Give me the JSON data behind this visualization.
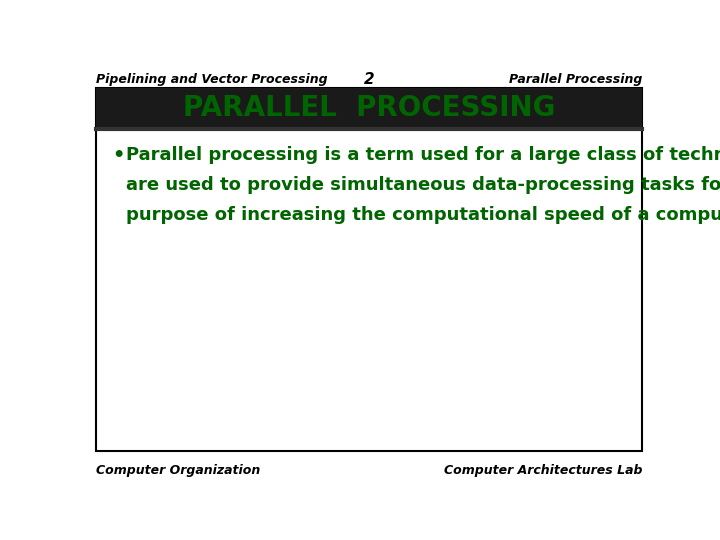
{
  "header_left": "Pipelining and Vector Processing",
  "header_center": "2",
  "header_right": "Parallel Processing",
  "title": "PARALLEL  PROCESSING",
  "title_color": "#006400",
  "bullet_lines": [
    "Parallel processing is a term used for a large class of techniques that",
    "are used to provide simultaneous data-processing tasks for the",
    "purpose of increasing the computational speed of a computer system."
  ],
  "footer_left": "Computer Organization",
  "footer_right": "Computer Architectures Lab",
  "bg_color": "#ffffff",
  "content_bg": "#ffffff",
  "border_color": "#000000",
  "dark_bar_color": "#1a1a1a",
  "header_font_size": 9,
  "title_font_size": 20,
  "bullet_font_size": 13,
  "footer_font_size": 9
}
